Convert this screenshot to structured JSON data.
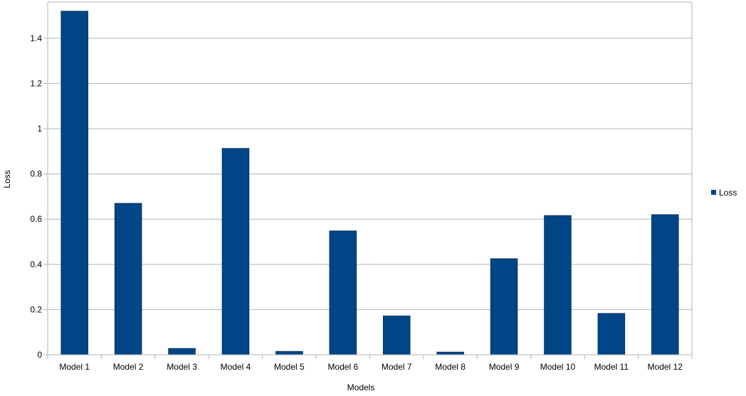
{
  "chart_data": {
    "type": "bar",
    "title": "",
    "xlabel": "Models",
    "ylabel": "Loss",
    "categories": [
      "Model 1",
      "Model 2",
      "Model 3",
      "Model 4",
      "Model 5",
      "Model 6",
      "Model 7",
      "Model 8",
      "Model 9",
      "Model 10",
      "Model 11",
      "Model 12"
    ],
    "series": [
      {
        "name": "Loss",
        "color": "#004586",
        "values": [
          1.52,
          0.67,
          0.028,
          0.913,
          0.015,
          0.548,
          0.172,
          0.012,
          0.425,
          0.616,
          0.183,
          0.62
        ]
      }
    ],
    "ylim": [
      0,
      1.56
    ],
    "yticks": [
      0,
      0.2,
      0.4,
      0.6,
      0.8,
      1,
      1.2,
      1.4
    ],
    "ytick_labels": [
      "0",
      "0.2",
      "0.4",
      "0.6",
      "0.8",
      "1",
      "1.2",
      "1.4"
    ],
    "grid": true,
    "legend": {
      "position": "right",
      "entries": [
        "Loss"
      ]
    }
  }
}
